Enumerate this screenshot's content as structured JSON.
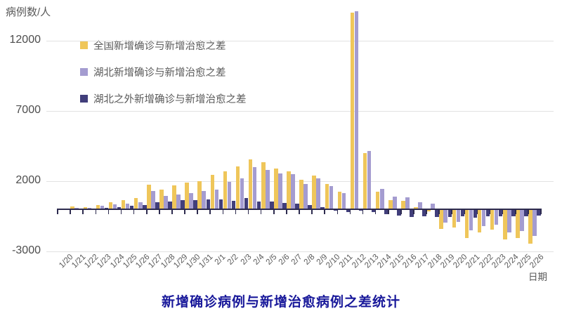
{
  "axes": {
    "y_unit_label": "病例数/人",
    "x_axis_label": "日期"
  },
  "footer": {
    "title": "新增确诊病例与新增治愈病例之差统计"
  },
  "legend": {
    "items": [
      {
        "label": "全国新增确诊与新增治愈之差",
        "color": "#efc65a"
      },
      {
        "label": "湖北新增确诊与新增治愈之差",
        "color": "#a49cd0"
      },
      {
        "label": "湖北之外新增确诊与新增治愈之差",
        "color": "#413e7b"
      }
    ]
  },
  "chart_data": {
    "type": "bar",
    "title": "新增确诊病例与新增治愈病例之差统计",
    "xlabel": "日期",
    "ylabel": "病例数/人",
    "grid": true,
    "legend_position": "top-left",
    "ylim": [
      -3000,
      14500
    ],
    "yticks": [
      12000,
      7000,
      2000,
      -3000
    ],
    "categories": [
      "1/20",
      "1/21",
      "1/22",
      "1/23",
      "1/24",
      "1/25",
      "1/26",
      "1/27",
      "1/28",
      "1/29",
      "1/30",
      "1/31",
      "2/1",
      "2/2",
      "2/3",
      "2/4",
      "2/5",
      "2/6",
      "2/7",
      "2/8",
      "2/9",
      "2/10",
      "2/11",
      "2/12",
      "2/13",
      "2/14",
      "2/15",
      "2/16",
      "2/17",
      "2/18",
      "2/19",
      "2/20",
      "2/21",
      "2/22",
      "2/23",
      "2/24",
      "2/25",
      "2/26"
    ],
    "series": [
      {
        "name": "全国新增确诊与新增治愈之差",
        "key": "national",
        "color": "#efc65a",
        "values": [
          50,
          180,
          150,
          320,
          480,
          650,
          800,
          1770,
          1420,
          1700,
          1900,
          2000,
          2450,
          2700,
          3050,
          3550,
          3350,
          2900,
          2700,
          2100,
          2400,
          1800,
          1250,
          14000,
          4000,
          1250,
          650,
          600,
          150,
          -75,
          -1350,
          -1220,
          -2000,
          -1580,
          -1400,
          -2100,
          -2000,
          -2400
        ]
      },
      {
        "name": "湖北新增确诊与新增治愈之差",
        "key": "hubei",
        "color": "#a49cd0",
        "values": [
          30,
          120,
          100,
          230,
          330,
          420,
          500,
          1290,
          950,
          1030,
          1150,
          1300,
          1400,
          1930,
          2200,
          2980,
          2800,
          2550,
          2480,
          1800,
          2200,
          1650,
          1150,
          14100,
          4150,
          1450,
          900,
          850,
          500,
          380,
          -900,
          -850,
          -1450,
          -1150,
          -1050,
          -1600,
          -1500,
          -1850
        ]
      },
      {
        "name": "湖北之外新增确诊与新增治愈之差",
        "key": "outside-hubei",
        "color": "#413e7b",
        "values": [
          20,
          60,
          50,
          90,
          150,
          230,
          300,
          480,
          550,
          650,
          650,
          680,
          700,
          600,
          800,
          550,
          550,
          450,
          400,
          280,
          170,
          -50,
          -120,
          -60,
          -150,
          -300,
          -400,
          -500,
          -450,
          -480,
          -500,
          -450,
          -550,
          -450,
          -430,
          -450,
          -420,
          -380
        ]
      }
    ]
  }
}
